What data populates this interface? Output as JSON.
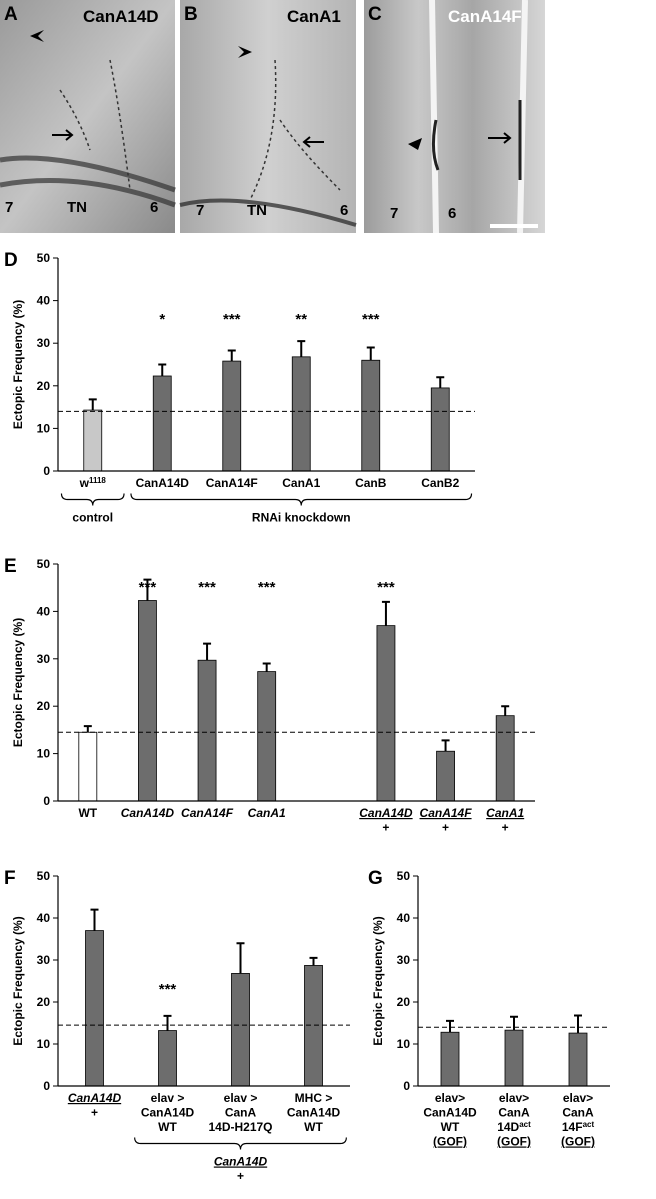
{
  "micrographs": [
    {
      "letter": "A",
      "label": "CanA14D",
      "marks": [
        "7",
        "TN",
        "6"
      ]
    },
    {
      "letter": "B",
      "label": "CanA1",
      "marks": [
        "7",
        "TN",
        "6"
      ]
    },
    {
      "letter": "C",
      "label": "CanA14F",
      "marks": [
        "7",
        "6"
      ]
    }
  ],
  "chart_data": [
    {
      "type": "bar",
      "panel": "D",
      "ylabel": "Ectopic Frequency (%)",
      "categories": [
        [
          {
            "text": "w",
            "sup": "1118"
          }
        ],
        [
          "CanA14D"
        ],
        [
          "CanA14F"
        ],
        [
          "CanA1"
        ],
        [
          "CanB"
        ],
        [
          "CanB2"
        ]
      ],
      "values": [
        14.3,
        22.3,
        25.8,
        26.8,
        26,
        19.5
      ],
      "errors": [
        2.5,
        2.7,
        2.5,
        3.7,
        3,
        2.5
      ],
      "colors": [
        "#c8c8c8",
        "#6d6d6d",
        "#6d6d6d",
        "#6d6d6d",
        "#6d6d6d",
        "#6d6d6d"
      ],
      "significance": [
        null,
        "*",
        "***",
        "**",
        "***",
        null
      ],
      "reference_line": 14,
      "ylim": [
        0,
        50
      ],
      "yticks": [
        0,
        10,
        20,
        30,
        40,
        50
      ],
      "groups": [
        {
          "label": [
            "control"
          ],
          "from": 0,
          "to": 0
        },
        {
          "label": [
            "RNAi knockdown"
          ],
          "from": 1,
          "to": 5
        }
      ]
    },
    {
      "type": "bar",
      "panel": "E",
      "ylabel": "Ectopic Frequency (%)",
      "categories": [
        [
          "WT"
        ],
        [
          {
            "text": "CanA14D",
            "italic": true
          }
        ],
        [
          {
            "text": "CanA14F",
            "italic": true
          }
        ],
        [
          {
            "text": "CanA1",
            "italic": true
          }
        ],
        null,
        [
          {
            "text": "CanA14D",
            "italic": true,
            "underline": true
          },
          "+"
        ],
        [
          {
            "text": "CanA14F",
            "italic": true,
            "underline": true
          },
          "+"
        ],
        [
          {
            "text": "CanA1",
            "italic": true,
            "underline": true
          },
          "+"
        ]
      ],
      "values": [
        14.5,
        42.3,
        29.7,
        27.3,
        null,
        37,
        10.5,
        18
      ],
      "errors": [
        1.3,
        4.4,
        3.5,
        1.7,
        null,
        5,
        2.3,
        2
      ],
      "colors": [
        "#ffffff",
        "#6d6d6d",
        "#6d6d6d",
        "#6d6d6d",
        null,
        "#6d6d6d",
        "#6d6d6d",
        "#6d6d6d"
      ],
      "significance": [
        null,
        "***",
        "***",
        "***",
        null,
        "***",
        null,
        null
      ],
      "reference_line": 14.5,
      "ylim": [
        0,
        50
      ],
      "yticks": [
        0,
        10,
        20,
        30,
        40,
        50
      ]
    },
    {
      "type": "bar",
      "panel": "F",
      "ylabel": "Ectopic Frequency (%)",
      "categories": [
        [
          {
            "text": "CanA14D",
            "italic": true,
            "underline": true
          },
          "+"
        ],
        [
          "elav >",
          "CanA14D",
          "WT"
        ],
        [
          "elav >",
          "CanA",
          "14D-H217Q"
        ],
        [
          "MHC >",
          "CanA14D",
          "WT"
        ]
      ],
      "values": [
        37,
        13.2,
        26.8,
        28.7
      ],
      "errors": [
        5,
        3.5,
        7.2,
        1.8
      ],
      "colors": [
        "#6d6d6d",
        "#6d6d6d",
        "#6d6d6d",
        "#6d6d6d"
      ],
      "significance": [
        null,
        "***",
        null,
        null
      ],
      "reference_line": 14.5,
      "ylim": [
        0,
        50
      ],
      "yticks": [
        0,
        10,
        20,
        30,
        40,
        50
      ],
      "groups": [
        {
          "label": [
            {
              "text": "CanA14D",
              "italic": true,
              "underline": true
            },
            "+"
          ],
          "from": 1,
          "to": 3
        }
      ]
    },
    {
      "type": "bar",
      "panel": "G",
      "ylabel": "Ectopic Frequency (%)",
      "categories": [
        [
          "elav>",
          "CanA14D",
          "WT",
          {
            "text": "(GOF)",
            "underline": true
          }
        ],
        [
          "elav>",
          "CanA",
          {
            "text": "14D",
            "sup": "act"
          },
          {
            "text": "(GOF)",
            "underline": true
          }
        ],
        [
          "elav>",
          "CanA",
          {
            "text": "14F",
            "sup": "act"
          },
          {
            "text": "(GOF)",
            "underline": true
          }
        ]
      ],
      "values": [
        12.8,
        13.3,
        12.6
      ],
      "errors": [
        2.7,
        3.2,
        4.2
      ],
      "colors": [
        "#6d6d6d",
        "#6d6d6d",
        "#6d6d6d"
      ],
      "reference_line": 14,
      "ylim": [
        0,
        50
      ],
      "yticks": [
        0,
        10,
        20,
        30,
        40,
        50
      ]
    }
  ]
}
